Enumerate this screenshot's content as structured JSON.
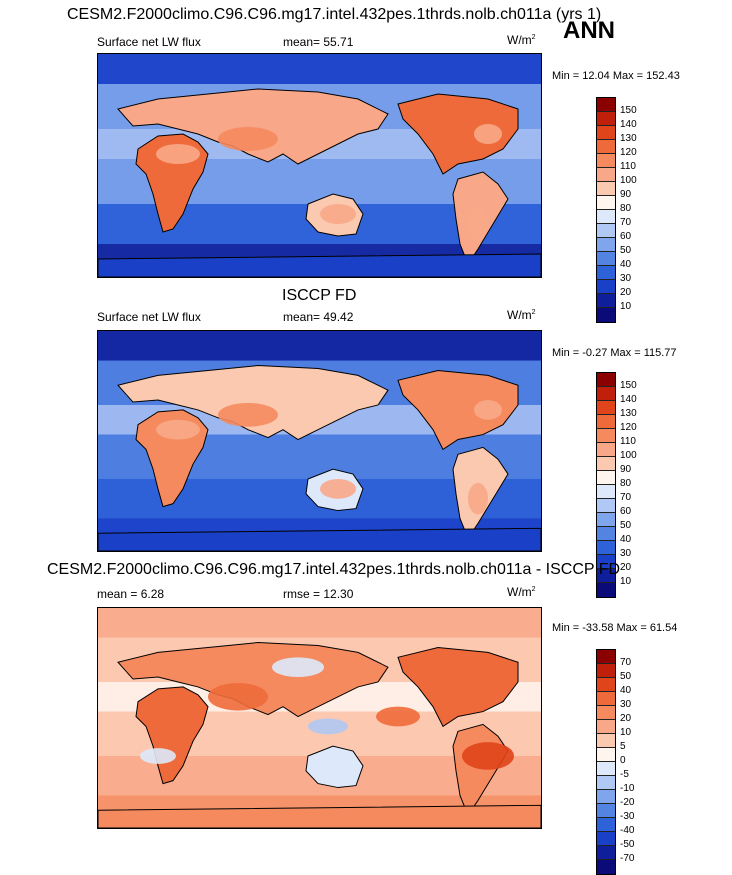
{
  "season": "ANN",
  "panels": [
    {
      "title": "CESM2.F2000climo.C96.C96.mg17.intel.432pes.1thrds.nolb.ch011a (yrs 1)",
      "left_label": "Surface net LW flux",
      "center_label": "mean=  55.71",
      "units": "W/m",
      "units_sup": "2",
      "minmax": "Min =  12.04 Max = 152.43",
      "colorbar": {
        "labels": [
          "150",
          "140",
          "130",
          "120",
          "110",
          "100",
          "90",
          "80",
          "70",
          "60",
          "50",
          "40",
          "30",
          "20",
          "10"
        ],
        "colors": [
          "#8b0000",
          "#c0200a",
          "#e0441a",
          "#ee6a3a",
          "#f58a5e",
          "#f8a888",
          "#fbc9b0",
          "#fff5ef",
          "#dde9fb",
          "#b0c8f4",
          "#7fa6ec",
          "#5384e2",
          "#2e62d8",
          "#1a40c8",
          "#0f1e9a",
          "#0a0a78"
        ]
      },
      "map_style": "abs"
    },
    {
      "title": "ISCCP FD",
      "left_label": "Surface net LW flux",
      "center_label": "mean=  49.42",
      "units": "W/m",
      "units_sup": "2",
      "minmax": "Min =  -0.27 Max = 115.77",
      "colorbar": {
        "labels": [
          "150",
          "140",
          "130",
          "120",
          "110",
          "100",
          "90",
          "80",
          "70",
          "60",
          "50",
          "40",
          "30",
          "20",
          "10"
        ],
        "colors": [
          "#8b0000",
          "#c0200a",
          "#e0441a",
          "#ee6a3a",
          "#f58a5e",
          "#f8a888",
          "#fbc9b0",
          "#fff5ef",
          "#dde9fb",
          "#b0c8f4",
          "#7fa6ec",
          "#5384e2",
          "#2e62d8",
          "#1a40c8",
          "#0f1e9a",
          "#0a0a78"
        ]
      },
      "map_style": "obs"
    },
    {
      "title": "CESM2.F2000climo.C96.C96.mg17.intel.432pes.1thrds.nolb.ch011a - ISCCP FD",
      "left_label": "mean =   6.28",
      "center_label": "rmse =  12.30",
      "units": "W/m",
      "units_sup": "2",
      "minmax": "Min = -33.58 Max =  61.54",
      "colorbar": {
        "labels": [
          "70",
          "50",
          "40",
          "30",
          "20",
          "10",
          "5",
          "0",
          "-5",
          "-10",
          "-20",
          "-30",
          "-40",
          "-50",
          "-70"
        ],
        "colors": [
          "#8b0000",
          "#c0200a",
          "#e0441a",
          "#ee6a3a",
          "#f58a5e",
          "#f8a888",
          "#fbc9b0",
          "#fff5ef",
          "#dde9fb",
          "#b0c8f4",
          "#7fa6ec",
          "#5384e2",
          "#2e62d8",
          "#1a40c8",
          "#0f1e9a",
          "#0a0a78"
        ]
      },
      "map_style": "diff"
    }
  ]
}
